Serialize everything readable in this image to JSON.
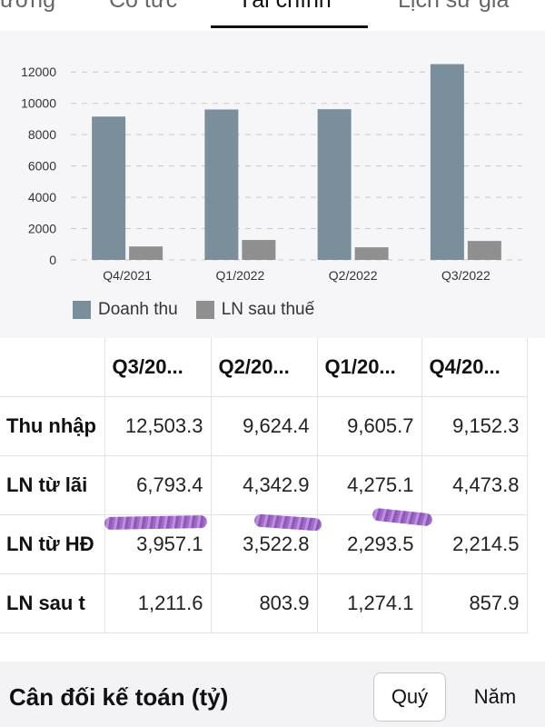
{
  "tabs": [
    {
      "label": "Dương"
    },
    {
      "label": "Cổ tức"
    },
    {
      "label": "Tài chính"
    },
    {
      "label": "Lịch sử giá"
    }
  ],
  "legend": [
    {
      "label": "Doanh thu",
      "color": "#7a8e9c"
    },
    {
      "label": "LN sau thuế",
      "color": "#8f8f8f"
    }
  ],
  "chart_data": {
    "type": "bar",
    "categories": [
      "Q4/2021",
      "Q1/2022",
      "Q2/2022",
      "Q3/2022"
    ],
    "series": [
      {
        "name": "Doanh thu",
        "values": [
          9152.3,
          9605.7,
          9624.4,
          12503.3
        ],
        "color": "#7a8e9c"
      },
      {
        "name": "LN sau thuế",
        "values": [
          857.9,
          1274.1,
          803.9,
          1211.6
        ],
        "color": "#8f8f8f"
      }
    ],
    "yticks": [
      0,
      2000,
      4000,
      6000,
      8000,
      10000,
      12000
    ],
    "ylim": [
      0,
      13000
    ],
    "grid": true,
    "legend_position": "bottom"
  },
  "table": {
    "headers": [
      "Q3/20...",
      "Q2/20...",
      "Q1/20...",
      "Q4/20..."
    ],
    "rows": [
      {
        "label": "Thu nhập",
        "values": [
          "12,503.3",
          "9,624.4",
          "9,605.7",
          "9,152.3"
        ]
      },
      {
        "label": "LN từ lãi",
        "values": [
          "6,793.4",
          "4,342.9",
          "4,275.1",
          "4,473.8"
        ]
      },
      {
        "label": "LN từ HĐ",
        "values": [
          "3,957.1",
          "3,522.8",
          "2,293.5",
          "2,214.5"
        ]
      },
      {
        "label": "LN sau t",
        "values": [
          "1,211.6",
          "803.9",
          "1,274.1",
          "857.9"
        ]
      }
    ]
  },
  "bottom": {
    "title": "Cân đối kế toán (tỷ)",
    "period_quarter": "Quý",
    "period_year": "Năm"
  }
}
